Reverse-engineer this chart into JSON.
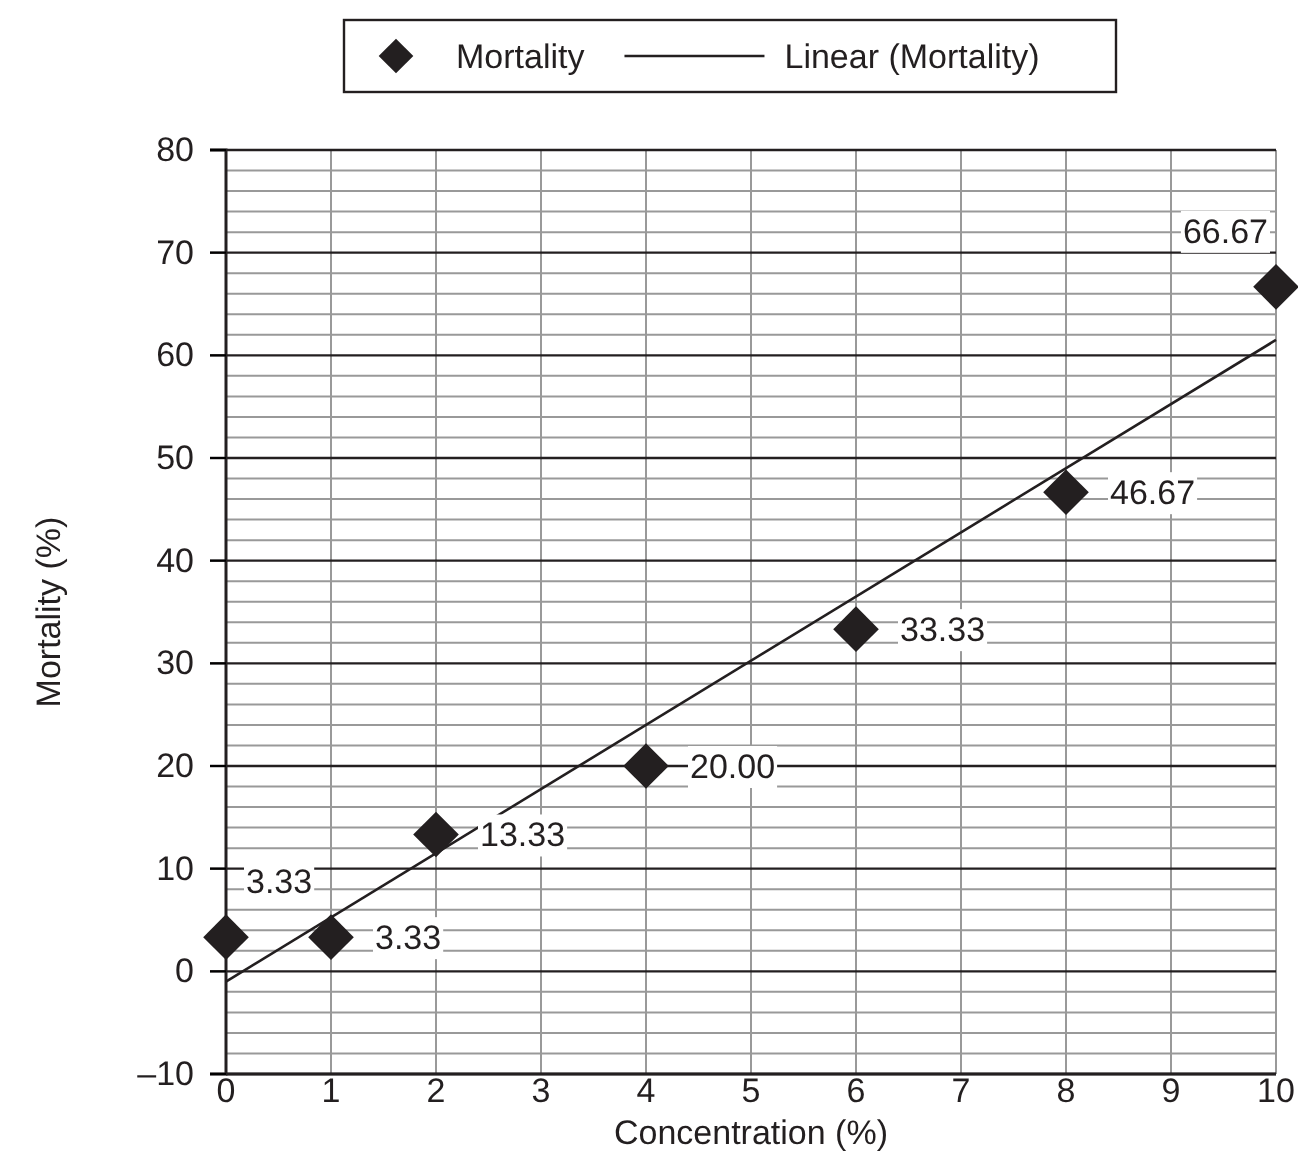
{
  "chart_data": {
    "type": "scatter",
    "xlabel": "Concentration (%)",
    "ylabel": "Mortality (%)",
    "xlim": [
      0,
      10
    ],
    "xticks": [
      0,
      1,
      2,
      3,
      4,
      5,
      6,
      7,
      8,
      9,
      10
    ],
    "ylim": [
      -10,
      80
    ],
    "yticks": [
      {
        "value": -10,
        "label": "–10"
      },
      0,
      10,
      20,
      30,
      40,
      50,
      60,
      70,
      80
    ],
    "grid": true,
    "legend": "top",
    "series": [
      {
        "name": "Mortality",
        "marker": "diamond",
        "color": "#231f20",
        "x": [
          0,
          1,
          2,
          4,
          6,
          8,
          10
        ],
        "values": [
          3.33,
          3.33,
          13.33,
          20,
          33.33,
          46.67,
          66.67
        ],
        "value_labels": [
          "3.33",
          "3.33",
          "13.33",
          "20.00",
          "33.33",
          "46.67",
          "66.67"
        ]
      },
      {
        "name": "Linear (Mortality)",
        "type": "line",
        "color": "#231f20",
        "line_style": "solid",
        "marker": "none",
        "x": [
          0,
          10
        ],
        "values": [
          -1,
          61.5
        ]
      }
    ]
  }
}
